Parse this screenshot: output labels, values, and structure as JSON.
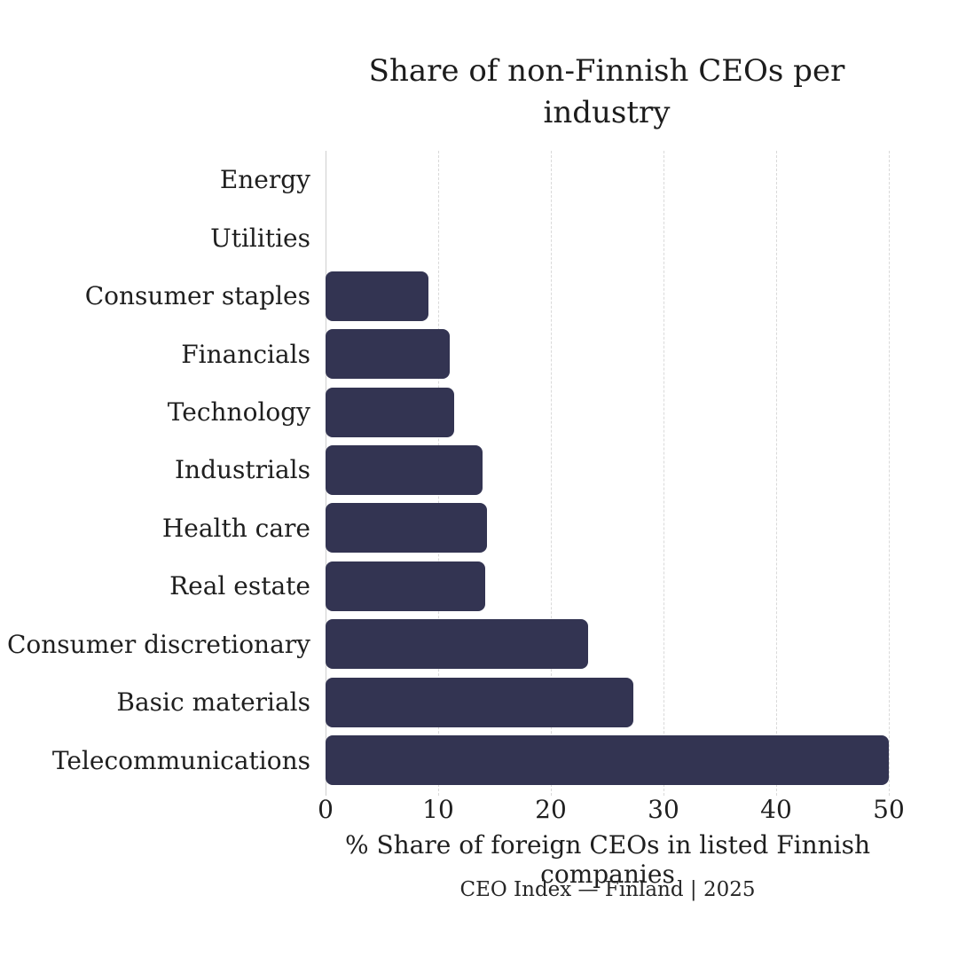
{
  "chart_data": {
    "type": "bar",
    "orientation": "horizontal",
    "title": "Share of non-Finnish CEOs per industry",
    "title_lines": [
      "Share of non-Finnish CEOs per",
      "industry"
    ],
    "categories": [
      "Energy",
      "Utilities",
      "Consumer staples",
      "Financials",
      "Technology",
      "Industrials",
      "Health care",
      "Real estate",
      "Consumer discretionary",
      "Basic materials",
      "Telecommunications"
    ],
    "values": [
      0,
      0,
      9.1,
      11.0,
      11.4,
      13.9,
      14.3,
      14.2,
      23.3,
      27.3,
      50.0
    ],
    "xlabel": "% Share of foreign CEOs in listed Finnish companies",
    "xlim": [
      0,
      50
    ],
    "xticks": [
      0,
      10,
      20,
      30,
      40,
      50
    ],
    "grid": "vertical-dashed",
    "legend": "none",
    "caption": "CEO Index — Finland | 2025",
    "bar_color": "#333452",
    "grid_color": "#d9d9d9",
    "axis_line_color": "#cfcfcf",
    "text_color": "#1f1f1f",
    "background_color": "#ffffff"
  }
}
